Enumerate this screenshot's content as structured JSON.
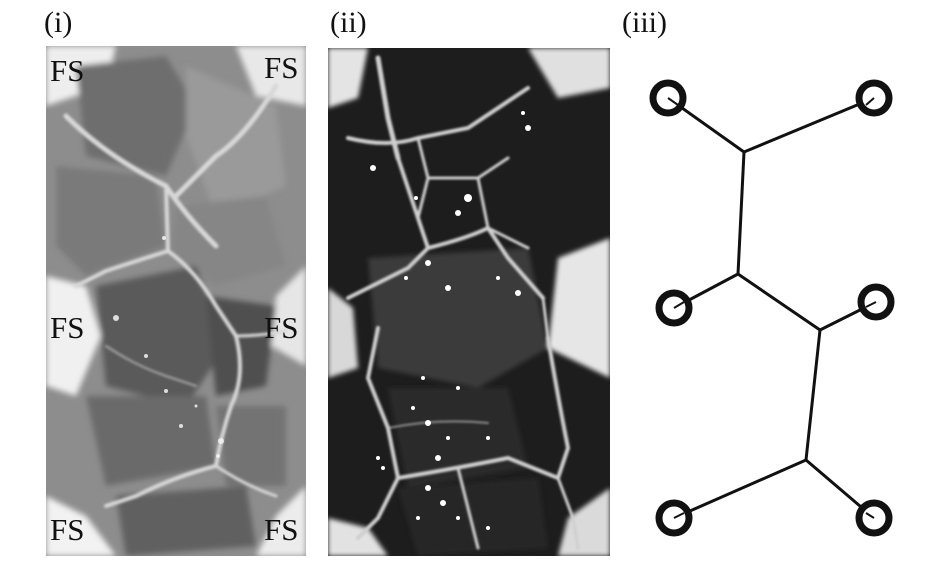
{
  "labels": {
    "panel_i": "(i)",
    "panel_ii": "(ii)",
    "panel_iii": "(iii)"
  },
  "fs_labels": {
    "top_left": "FS",
    "top_right": "FS",
    "mid_left": "FS",
    "mid_right": "FS",
    "bottom_left": "FS",
    "bottom_right": "FS"
  },
  "colors": {
    "ink": "#111111",
    "panel_i_mid": "#8a8a8a",
    "panel_ii_dark": "#1c1c1c",
    "boundary_light": "#d8d8d8"
  }
}
